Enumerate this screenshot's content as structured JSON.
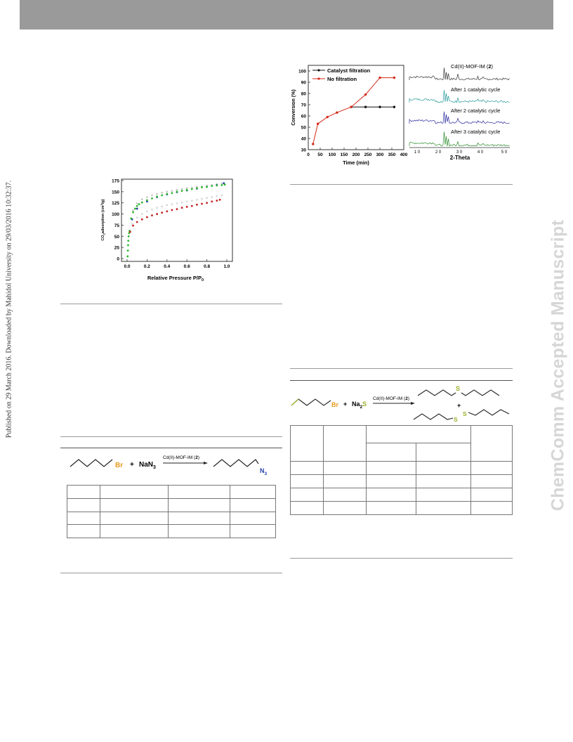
{
  "header": {
    "bar_color": "#9a9a9a"
  },
  "side_text": {
    "published": "Published on 29 March 2016. Downloaded by Mahidol University on 29/03/2016 10:32:37.",
    "watermark": "ChemComm Accepted Manuscript"
  },
  "figure_co2": {
    "chart_data": {
      "type": "scatter",
      "xlabel": "Relative Pressure P/P",
      "xlabel_sub": "0",
      "ylabel": "CO",
      "ylabel_sub": "2",
      "ylabel_rest": "adsorption (cm",
      "ylabel_sup": "3",
      "ylabel_end": "/g)",
      "xlim": [
        0,
        1.0
      ],
      "ylim": [
        0,
        175
      ],
      "x_ticks": [
        "0.0",
        "0.2",
        "0.4",
        "0.6",
        "0.8",
        "1.0"
      ],
      "y_ticks": [
        "0",
        "25",
        "50",
        "75",
        "100",
        "125",
        "150",
        "175"
      ],
      "series": [
        {
          "color": "#c8c8c8",
          "points": [
            [
              0.03,
              62
            ],
            [
              0.06,
              108
            ],
            [
              0.1,
              124
            ],
            [
              0.15,
              133
            ],
            [
              0.2,
              138
            ],
            [
              0.25,
              142
            ],
            [
              0.3,
              145
            ],
            [
              0.35,
              148
            ],
            [
              0.4,
              150
            ],
            [
              0.45,
              152
            ],
            [
              0.5,
              154
            ],
            [
              0.55,
              156
            ],
            [
              0.6,
              158
            ],
            [
              0.65,
              159
            ],
            [
              0.7,
              161
            ],
            [
              0.75,
              162
            ],
            [
              0.8,
              164
            ],
            [
              0.85,
              165
            ],
            [
              0.9,
              167
            ],
            [
              0.95,
              168
            ]
          ]
        },
        {
          "color": "#1f3fa8",
          "points": [
            [
              0.05,
              88
            ],
            [
              0.1,
              112
            ],
            [
              0.2,
              128
            ],
            [
              0.3,
              138
            ],
            [
              0.4,
              144
            ],
            [
              0.5,
              149
            ],
            [
              0.6,
              153
            ],
            [
              0.7,
              157
            ],
            [
              0.8,
              161
            ],
            [
              0.9,
              165
            ],
            [
              0.97,
              169
            ]
          ]
        },
        {
          "color": "#2db82d",
          "points": [
            [
              0.005,
              5
            ],
            [
              0.008,
              18
            ],
            [
              0.01,
              30
            ],
            [
              0.012,
              40
            ],
            [
              0.015,
              50
            ],
            [
              0.02,
              57
            ],
            [
              0.025,
              62
            ],
            [
              0.04,
              90
            ],
            [
              0.06,
              104
            ],
            [
              0.08,
              112
            ],
            [
              0.1,
              118
            ],
            [
              0.12,
              122
            ],
            [
              0.15,
              126
            ],
            [
              0.2,
              131
            ],
            [
              0.25,
              135
            ],
            [
              0.3,
              139
            ],
            [
              0.35,
              142
            ],
            [
              0.4,
              145
            ],
            [
              0.45,
              147
            ],
            [
              0.5,
              150
            ],
            [
              0.55,
              152
            ],
            [
              0.6,
              154
            ],
            [
              0.65,
              156
            ],
            [
              0.7,
              158
            ],
            [
              0.75,
              160
            ],
            [
              0.8,
              161
            ],
            [
              0.85,
              163
            ],
            [
              0.9,
              164
            ],
            [
              0.95,
              165
            ],
            [
              0.98,
              166
            ]
          ]
        },
        {
          "color": "#d8d8d8",
          "points": [
            [
              0.05,
              78
            ],
            [
              0.1,
              92
            ],
            [
              0.15,
              100
            ],
            [
              0.2,
              106
            ],
            [
              0.25,
              110
            ],
            [
              0.3,
              114
            ],
            [
              0.35,
              117
            ],
            [
              0.4,
              120
            ],
            [
              0.45,
              122
            ],
            [
              0.5,
              124
            ],
            [
              0.55,
              126
            ],
            [
              0.6,
              128
            ],
            [
              0.65,
              130
            ],
            [
              0.7,
              132
            ],
            [
              0.75,
              134
            ],
            [
              0.8,
              136
            ],
            [
              0.85,
              138
            ],
            [
              0.9,
              140
            ],
            [
              0.95,
              142
            ]
          ]
        },
        {
          "color": "#c42020",
          "points": [
            [
              0.03,
              60
            ],
            [
              0.06,
              74
            ],
            [
              0.1,
              82
            ],
            [
              0.15,
              88
            ],
            [
              0.2,
              93
            ],
            [
              0.25,
              97
            ],
            [
              0.3,
              100
            ],
            [
              0.35,
              103
            ],
            [
              0.4,
              106
            ],
            [
              0.45,
              109
            ],
            [
              0.5,
              111
            ],
            [
              0.55,
              114
            ],
            [
              0.6,
              116
            ],
            [
              0.65,
              118
            ],
            [
              0.7,
              121
            ],
            [
              0.75,
              123
            ],
            [
              0.8,
              125
            ],
            [
              0.85,
              128
            ],
            [
              0.9,
              130
            ],
            [
              0.93,
              132
            ]
          ]
        }
      ]
    }
  },
  "figure_conversion": {
    "chart_data": {
      "type": "line",
      "xlabel": "Time (min)",
      "ylabel": "Conversion (%)",
      "xlim": [
        0,
        400
      ],
      "ylim": [
        30,
        105
      ],
      "x_ticks": [
        "0",
        "50",
        "100",
        "150",
        "200",
        "250",
        "300",
        "350",
        "400"
      ],
      "y_ticks": [
        "30",
        "40",
        "50",
        "60",
        "70",
        "80",
        "90",
        "100"
      ],
      "series": [
        {
          "name": "Catalyst filtration",
          "color": "#111111",
          "x": [
            180,
            240,
            300,
            360
          ],
          "y": [
            68,
            68,
            68,
            68
          ]
        },
        {
          "name": "No filtration",
          "color": "#d42a1a",
          "x": [
            20,
            40,
            80,
            120,
            180,
            240,
            300,
            360
          ],
          "y": [
            35,
            53,
            59,
            63,
            68,
            79,
            94,
            94
          ]
        }
      ]
    }
  },
  "figure_xrd": {
    "xlabel": "2-Theta",
    "ticks": [
      "1 0",
      "2 0",
      "3 0",
      "4 0",
      "5 0"
    ],
    "traces": [
      {
        "label_pre": "Cd(II)-MOF-IM (",
        "label_num": "2",
        "label_post": ")",
        "color": "#333333"
      },
      {
        "label": "After 1 catalytic cycle",
        "color": "#2a9a9a"
      },
      {
        "label": "After 2 catalytic cycle",
        "color": "#2a2aa0"
      },
      {
        "label": "After 3 catalytic cycle",
        "color": "#2a8a2a"
      }
    ]
  },
  "scheme_azide": {
    "br": "Br",
    "plus": "+",
    "nan3_pre": "NaN",
    "nan3_sub": "3",
    "catalyst_pre": "Cd(II)-MOF-IM (",
    "catalyst_num": "2",
    "catalyst_post": ")",
    "n3_pre": "N",
    "n3_sub": "3"
  },
  "scheme_sulfide": {
    "br": "Br",
    "plus": "+",
    "na2s_pre": "Na",
    "na2s_sub": "2",
    "na2s_s": "S",
    "catalyst_pre": "Cd(II)-MOF-IM (",
    "catalyst_num": "2",
    "catalyst_post": ")",
    "s1": "S",
    "plus2": "+",
    "s2a": "S",
    "s2b": "S"
  }
}
